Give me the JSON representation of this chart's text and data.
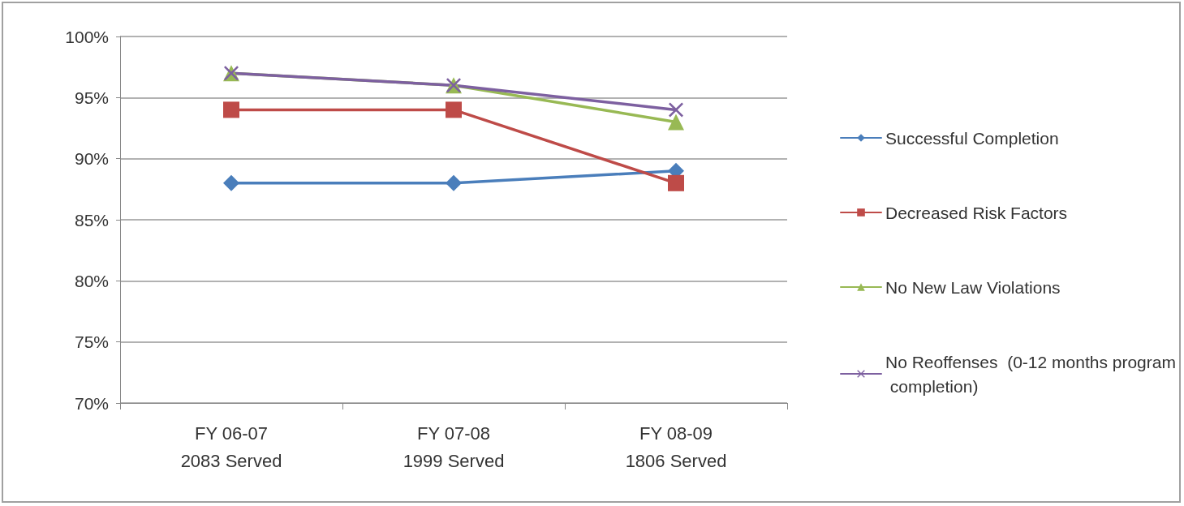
{
  "chart_data": {
    "type": "line",
    "categories": [
      "FY 06-07\n2083 Served",
      "FY 07-08\n1999 Served",
      "FY 08-09\n1806 Served"
    ],
    "series": [
      {
        "name": "Successful Completion",
        "color": "#4a7ebb",
        "marker": "diamond",
        "values": [
          88,
          88,
          89
        ]
      },
      {
        "name": "Decreased Risk Factors",
        "color": "#be4b48",
        "marker": "square",
        "values": [
          94,
          94,
          88
        ]
      },
      {
        "name": "No New Law Violations",
        "color": "#98b954",
        "marker": "triangle",
        "values": [
          97,
          96,
          93
        ]
      },
      {
        "name": "No Reoffenses  (0-12 months program completion)",
        "color": "#7d60a0",
        "marker": "cross",
        "values": [
          97,
          96,
          94
        ]
      }
    ],
    "ylim": [
      70,
      100
    ],
    "yticks": [
      {
        "value": 70,
        "label": "70%"
      },
      {
        "value": 75,
        "label": "75%"
      },
      {
        "value": 80,
        "label": "80%"
      },
      {
        "value": 85,
        "label": "85%"
      },
      {
        "value": 90,
        "label": "90%"
      },
      {
        "value": 95,
        "label": "95%"
      },
      {
        "value": 100,
        "label": "100%"
      }
    ],
    "grid": "y",
    "legend": "right",
    "line_style": "solid"
  }
}
